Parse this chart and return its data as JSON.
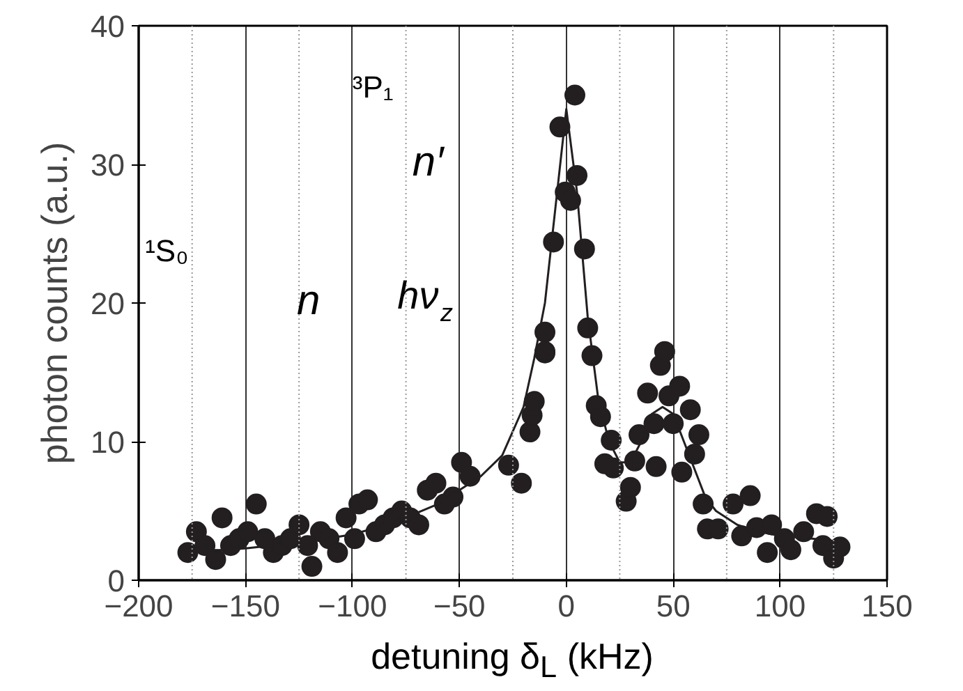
{
  "chart_data": {
    "type": "scatter",
    "xlabel": "detuning δ$_{L}$ (kHz)",
    "ylabel": "photon counts (a.u.)",
    "xlim": [
      -200,
      150
    ],
    "xticks": [
      -200,
      -150,
      -100,
      -50,
      0,
      50,
      100,
      150
    ],
    "ylim": [
      0,
      40
    ],
    "yticks": [
      0,
      10,
      20,
      30,
      40
    ],
    "grid": "x",
    "annotations": [
      "³P₁",
      "¹S₀",
      "n",
      "n′",
      "hν$_{z}$"
    ],
    "series": [
      {
        "marker": "circle",
        "color": "#231f20",
        "x": [
          -177,
          -173,
          -169,
          -164,
          -161,
          -157,
          -153,
          -149,
          -145,
          -141,
          -137,
          -133,
          -129,
          -125,
          -121,
          -119,
          -115,
          -111,
          -107,
          -103,
          -99,
          -97,
          -93,
          -89,
          -85,
          -81,
          -77,
          -73,
          -69,
          -65,
          -61,
          -57,
          -53,
          -49,
          -45,
          -27,
          -21,
          -17,
          -16,
          -15,
          -10,
          -10,
          -10,
          -6,
          -3,
          -0.5,
          2,
          4,
          5,
          8.5,
          10,
          12,
          14,
          16,
          18,
          21,
          22,
          28,
          30,
          32,
          34,
          38,
          41,
          42,
          44,
          46,
          48,
          50,
          53,
          54,
          58,
          60,
          62,
          64,
          66,
          71,
          78,
          82,
          86,
          89,
          94,
          96,
          102,
          105,
          111,
          117,
          120,
          122,
          125,
          128
        ],
        "values": [
          2,
          3.5,
          2.5,
          1.5,
          4.5,
          2.5,
          3,
          3.5,
          5.5,
          3,
          2,
          2.5,
          3,
          4,
          2.5,
          1,
          3.5,
          3,
          2,
          4.5,
          3,
          5.5,
          5.8,
          3.5,
          4,
          4.5,
          5,
          4.5,
          4,
          6.5,
          7,
          5.5,
          6,
          8.5,
          7.5,
          8.3,
          7,
          10.7,
          11.9,
          12.9,
          16.4,
          17.9,
          16.5,
          24.4,
          32.7,
          28,
          27.4,
          35,
          29.2,
          23.9,
          18.2,
          16.2,
          12.6,
          11.8,
          8.4,
          10.1,
          8.1,
          5.7,
          6.7,
          8.6,
          10.5,
          13.5,
          11.3,
          8.2,
          15.5,
          16.5,
          13.3,
          11.3,
          14,
          7.8,
          12.3,
          9.1,
          10.5,
          5.5,
          3.7,
          3.7,
          5.5,
          3.2,
          6.1,
          3.8,
          2,
          4,
          3,
          2.2,
          3.5,
          4.8,
          2.5,
          4.6,
          1.6,
          2.4
        ]
      },
      {
        "type": "line",
        "color": "#231f20",
        "x": [
          -180,
          -150,
          -120,
          -100,
          -80,
          -60,
          -40,
          -30,
          -20,
          -15,
          -10,
          -5,
          0,
          5,
          10,
          15,
          20,
          25,
          30,
          35,
          40,
          45,
          50,
          55,
          60,
          65,
          70,
          80,
          90,
          100,
          115,
          127
        ],
        "values": [
          2,
          2.3,
          2.8,
          3.3,
          4.2,
          5.5,
          7.5,
          9,
          12.5,
          16,
          20,
          27,
          34,
          28,
          19,
          13,
          10,
          8.5,
          8.5,
          10,
          12,
          12.5,
          12,
          10,
          8,
          6,
          5,
          4,
          3.5,
          3.2,
          3,
          2.8
        ]
      }
    ]
  }
}
